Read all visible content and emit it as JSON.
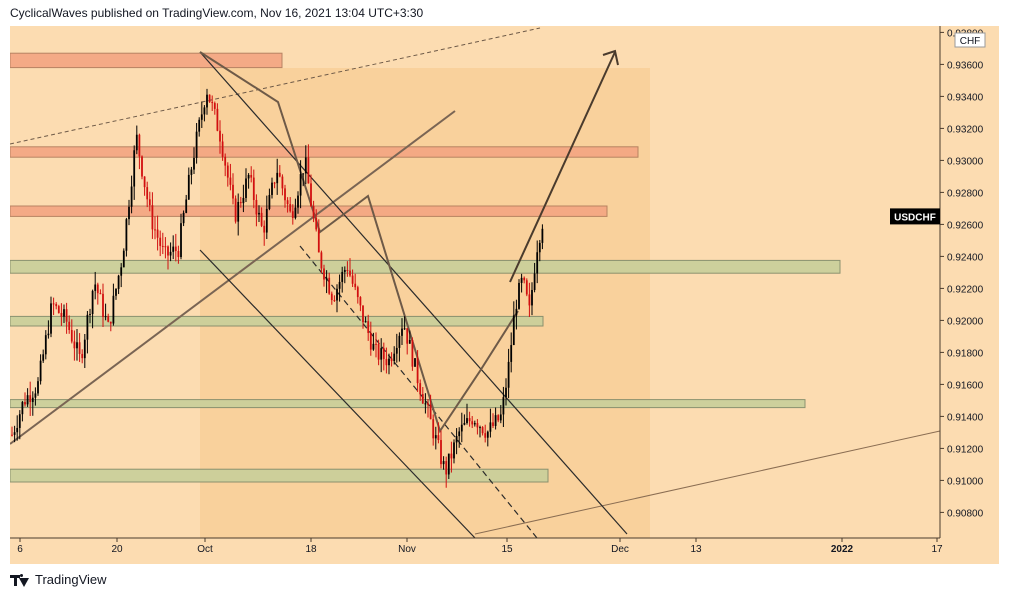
{
  "header": {
    "publish_line": "CyclicalWaves published on TradingView.com, Nov 16, 2021 13:04 UTC+3:30"
  },
  "footer": {
    "brand": "TradingView"
  },
  "colors": {
    "background": "#fcdcb1",
    "projection_zone": "#f5c98a",
    "resistance_zone": "#f4a582",
    "support_zone": "#c9cf9a",
    "candle_up": "#000000",
    "candle_down": "#d10f0f",
    "trendline": "#2b2b2b",
    "pattern_line": "#6e5a48",
    "price_label_bg": "#000000"
  },
  "chart_data": {
    "type": "candlestick",
    "symbol_label": "USDCHF",
    "currency_label": "CHF",
    "y_ticks": [
      0.938,
      0.936,
      0.934,
      0.932,
      0.93,
      0.928,
      0.926,
      0.924,
      0.922,
      0.92,
      0.918,
      0.916,
      0.914,
      0.912,
      0.91,
      0.908
    ],
    "ylim": [
      0.9064,
      0.9384
    ],
    "x_tick_labels": [
      "6",
      "20",
      "Oct",
      "18",
      "Nov",
      "15",
      "Dec",
      "13",
      "2022",
      "17"
    ],
    "bold_x_ticks": [
      "2022"
    ],
    "grid": false,
    "zones": [
      {
        "kind": "resistance",
        "top": 0.9367,
        "bottom": 0.9358
      },
      {
        "kind": "resistance",
        "top": 0.93085,
        "bottom": 0.9302
      },
      {
        "kind": "resistance",
        "top": 0.92715,
        "bottom": 0.9265
      },
      {
        "kind": "support",
        "top": 0.92375,
        "bottom": 0.92295
      },
      {
        "kind": "support",
        "top": 0.92025,
        "bottom": 0.91965
      },
      {
        "kind": "support",
        "top": 0.91505,
        "bottom": 0.91455
      },
      {
        "kind": "support",
        "top": 0.9107,
        "bottom": 0.9099
      }
    ],
    "price_path": [
      {
        "x": "Sep 01",
        "y": 0.9125
      },
      {
        "x": "Sep 03",
        "y": 0.915
      },
      {
        "x": "Sep 05",
        "y": 0.916
      },
      {
        "x": "Sep 07",
        "y": 0.921
      },
      {
        "x": "Sep 09",
        "y": 0.92
      },
      {
        "x": "Sep 11",
        "y": 0.9175
      },
      {
        "x": "Sep 13",
        "y": 0.9225
      },
      {
        "x": "Sep 15",
        "y": 0.9195
      },
      {
        "x": "Sep 17",
        "y": 0.924
      },
      {
        "x": "Sep 19",
        "y": 0.9315
      },
      {
        "x": "Sep 21",
        "y": 0.9265
      },
      {
        "x": "Sep 23",
        "y": 0.924
      },
      {
        "x": "Sep 25",
        "y": 0.9245
      },
      {
        "x": "Sep 27",
        "y": 0.93
      },
      {
        "x": "Sep 29",
        "y": 0.9345
      },
      {
        "x": "Oct 01",
        "y": 0.9315
      },
      {
        "x": "Oct 03",
        "y": 0.9265
      },
      {
        "x": "Oct 05",
        "y": 0.929
      },
      {
        "x": "Oct 07",
        "y": 0.9255
      },
      {
        "x": "Oct 09",
        "y": 0.9295
      },
      {
        "x": "Oct 11",
        "y": 0.9265
      },
      {
        "x": "Oct 13",
        "y": 0.93
      },
      {
        "x": "Oct 15",
        "y": 0.924
      },
      {
        "x": "Oct 17",
        "y": 0.9215
      },
      {
        "x": "Oct 19",
        "y": 0.9235
      },
      {
        "x": "Oct 21",
        "y": 0.9205
      },
      {
        "x": "Oct 23",
        "y": 0.918
      },
      {
        "x": "Oct 25",
        "y": 0.9175
      },
      {
        "x": "Oct 27",
        "y": 0.92
      },
      {
        "x": "Oct 29",
        "y": 0.9165
      },
      {
        "x": "Oct 31",
        "y": 0.9135
      },
      {
        "x": "Nov 02",
        "y": 0.9105
      },
      {
        "x": "Nov 04",
        "y": 0.913
      },
      {
        "x": "Nov 06",
        "y": 0.914
      },
      {
        "x": "Nov 08",
        "y": 0.913
      },
      {
        "x": "Nov 10",
        "y": 0.914
      },
      {
        "x": "Nov 11",
        "y": 0.917
      },
      {
        "x": "Nov 12",
        "y": 0.921
      },
      {
        "x": "Nov 13",
        "y": 0.9225
      },
      {
        "x": "Nov 14",
        "y": 0.9205
      },
      {
        "x": "Nov 15",
        "y": 0.9245
      },
      {
        "x": "Nov 16",
        "y": 0.9265
      }
    ]
  }
}
